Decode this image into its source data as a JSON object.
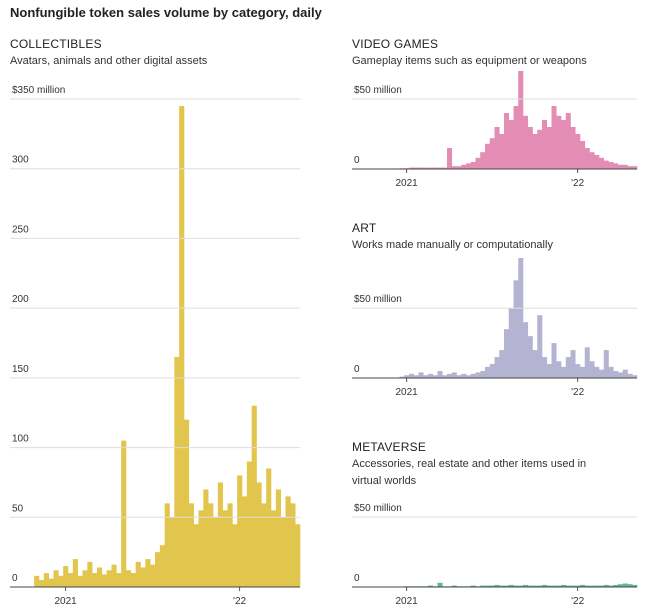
{
  "title": "Nonfungible token sales volume by category, daily",
  "chart_data": [
    {
      "type": "bar",
      "title": "COLLECTIBLES",
      "subtitle": "Avatars, animals and other digital assets",
      "color": "#e2c54c",
      "categories": [
        null,
        null,
        null,
        null,
        null,
        null,
        null,
        null,
        null,
        null,
        null,
        "2021",
        null,
        null,
        null,
        null,
        null,
        null,
        null,
        null,
        null,
        null,
        null,
        null,
        null,
        null,
        null,
        null,
        null,
        null,
        null,
        null,
        null,
        null,
        null,
        null,
        null,
        null,
        null,
        null,
        null,
        null,
        null,
        null,
        null,
        null,
        null,
        "'22",
        null,
        null,
        null,
        null,
        null,
        null,
        null,
        null,
        null,
        null,
        null,
        null
      ],
      "values": [
        0,
        0,
        0,
        0,
        0,
        8,
        5,
        10,
        6,
        12,
        8,
        15,
        10,
        20,
        8,
        12,
        18,
        10,
        14,
        9,
        12,
        16,
        10,
        105,
        12,
        10,
        18,
        14,
        20,
        16,
        25,
        30,
        60,
        50,
        165,
        345,
        120,
        60,
        45,
        55,
        70,
        60,
        50,
        75,
        55,
        60,
        45,
        80,
        65,
        90,
        130,
        75,
        60,
        85,
        55,
        70,
        50,
        65,
        60,
        45
      ],
      "ylim": [
        0,
        350
      ],
      "yticks": [
        0,
        50,
        100,
        150,
        200,
        250,
        300,
        {
          "value": 350,
          "label": "$350 million"
        }
      ]
    },
    {
      "type": "bar",
      "title": "VIDEO GAMES",
      "subtitle": "Gameplay items such as equipment or weapons",
      "color": "#e38cb4",
      "categories": [
        null,
        null,
        null,
        null,
        null,
        null,
        null,
        null,
        null,
        null,
        null,
        "2021",
        null,
        null,
        null,
        null,
        null,
        null,
        null,
        null,
        null,
        null,
        null,
        null,
        null,
        null,
        null,
        null,
        null,
        null,
        null,
        null,
        null,
        null,
        null,
        null,
        null,
        null,
        null,
        null,
        null,
        null,
        null,
        null,
        null,
        null,
        null,
        "'22",
        null,
        null,
        null,
        null,
        null,
        null,
        null,
        null,
        null,
        null,
        null,
        null
      ],
      "values": [
        0,
        0,
        0,
        0,
        0,
        0,
        0,
        0,
        0,
        0,
        0.5,
        0.5,
        1,
        1,
        1,
        1,
        1,
        1,
        1,
        1,
        15,
        2,
        2,
        3,
        4,
        5,
        8,
        12,
        18,
        22,
        30,
        25,
        40,
        35,
        45,
        70,
        38,
        30,
        25,
        28,
        35,
        30,
        45,
        38,
        35,
        40,
        30,
        25,
        20,
        15,
        12,
        10,
        8,
        6,
        5,
        4,
        3,
        3,
        2,
        2
      ],
      "ylim": [
        0,
        70
      ],
      "yticks": [
        0,
        {
          "value": 50,
          "label": "$50 million"
        }
      ]
    },
    {
      "type": "bar",
      "title": "ART",
      "subtitle": "Works made manually or computationally",
      "color": "#b4b4d2",
      "categories": [
        null,
        null,
        null,
        null,
        null,
        null,
        null,
        null,
        null,
        null,
        null,
        "2021",
        null,
        null,
        null,
        null,
        null,
        null,
        null,
        null,
        null,
        null,
        null,
        null,
        null,
        null,
        null,
        null,
        null,
        null,
        null,
        null,
        null,
        null,
        null,
        null,
        null,
        null,
        null,
        null,
        null,
        null,
        null,
        null,
        null,
        null,
        null,
        "'22",
        null,
        null,
        null,
        null,
        null,
        null,
        null,
        null,
        null,
        null,
        null,
        null
      ],
      "values": [
        0,
        0,
        0,
        0,
        0,
        0,
        0,
        0,
        0,
        0,
        1,
        2,
        3,
        2,
        4,
        2,
        3,
        2,
        5,
        2,
        3,
        4,
        2,
        3,
        2,
        3,
        4,
        5,
        8,
        10,
        15,
        20,
        35,
        50,
        70,
        86,
        40,
        30,
        20,
        45,
        15,
        10,
        25,
        12,
        8,
        15,
        20,
        10,
        8,
        22,
        12,
        8,
        6,
        20,
        8,
        5,
        4,
        6,
        3,
        2
      ],
      "ylim": [
        0,
        86
      ],
      "yticks": [
        0,
        {
          "value": 50,
          "label": "$50 million"
        }
      ]
    },
    {
      "type": "bar",
      "title": "METAVERSE",
      "subtitle": "Accessories, real estate and other items used in virtual worlds",
      "color": "#5bb89c",
      "categories": [
        null,
        null,
        null,
        null,
        null,
        null,
        null,
        null,
        null,
        null,
        null,
        "2021",
        null,
        null,
        null,
        null,
        null,
        null,
        null,
        null,
        null,
        null,
        null,
        null,
        null,
        null,
        null,
        null,
        null,
        null,
        null,
        null,
        null,
        null,
        null,
        null,
        null,
        null,
        null,
        null,
        null,
        null,
        null,
        null,
        null,
        null,
        null,
        "'22",
        null,
        null,
        null,
        null,
        null,
        null,
        null,
        null,
        null,
        null,
        null,
        null
      ],
      "values": [
        0,
        0,
        0,
        0,
        0,
        0,
        0,
        0,
        0,
        0,
        0.3,
        0.5,
        0.5,
        0.5,
        0.5,
        0.5,
        1,
        0.5,
        3,
        0.5,
        0.5,
        1,
        0.5,
        0.5,
        0.5,
        1,
        0.5,
        1,
        1,
        1,
        1.5,
        1,
        1,
        1.5,
        1,
        1,
        1.5,
        1,
        1,
        1,
        1.5,
        1,
        1,
        1,
        1.5,
        1,
        1,
        1,
        1.5,
        1,
        1,
        1,
        1,
        1.5,
        1,
        1.5,
        2,
        2.5,
        2,
        1.5
      ],
      "ylim": [
        0,
        50
      ],
      "yticks": [
        0,
        {
          "value": 50,
          "label": "$50 million"
        }
      ]
    }
  ]
}
